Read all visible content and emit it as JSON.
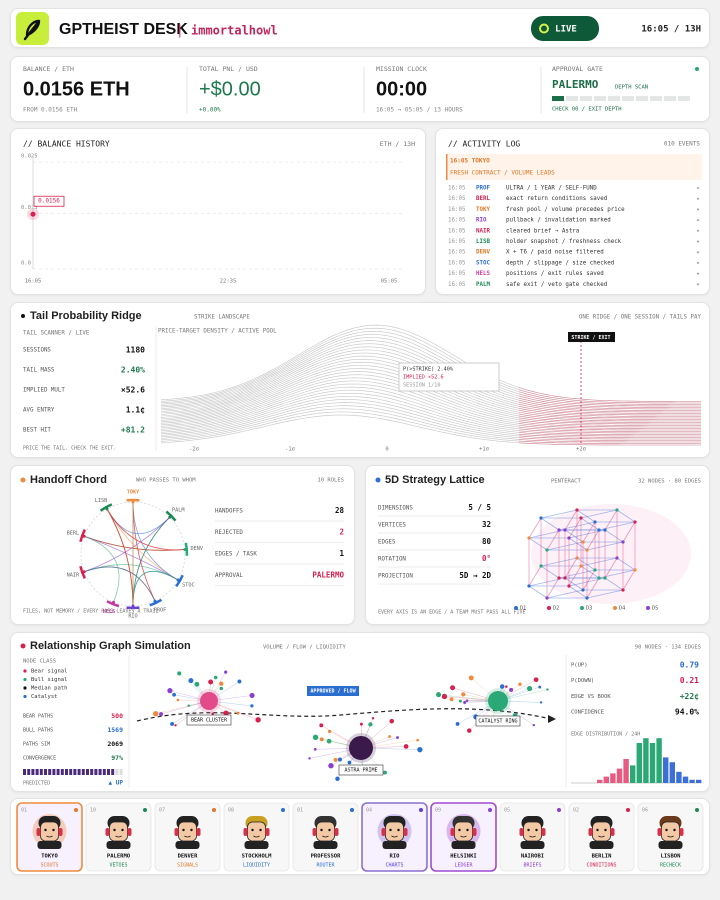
{
  "header": {
    "title": "GPTHEIST DESK",
    "separator": "|",
    "user": "immortalhowl",
    "status": "LIVE",
    "clock": "16:05 / 13H"
  },
  "stats": [
    {
      "label": "BALANCE / ETH",
      "value": "0.0156 ETH",
      "sub": "FROM 0.0156 ETH"
    },
    {
      "label": "TOTAL PNL / USD",
      "value": "+$0.00",
      "sub": "+0.00%"
    },
    {
      "label": "MISSION CLOCK",
      "value": "00:00",
      "sub": "16:05 → 05:05 / 13 HOURS"
    },
    {
      "label": "APPROVAL GATE",
      "value": "PALERMO",
      "tag": "DEPTH SCAN",
      "sub": "CHECK 00 / EXIT DEPTH"
    }
  ],
  "balance_history": {
    "title": "// BALANCE HISTORY",
    "range": "ETH / 13H",
    "ylim": [
      0,
      0.025
    ],
    "yticks": [
      0.025,
      0.013,
      {
        "value": 0,
        "label": "0.0"
      }
    ],
    "x_labels": [
      "16:05",
      "22:35",
      "05:05"
    ],
    "value": 0.0156
  },
  "activity_log": {
    "title": "// ACTIVITY LOG",
    "count": "010 EVENTS",
    "highlight": {
      "time": "16:05 TOKYO",
      "text": "FRESH CONTRACT / VOLUME LEADS"
    },
    "rows": [
      [
        "16:05",
        "PROF",
        "ULTRA / 1 YEAR / SELF-FUND"
      ],
      [
        "16:05",
        "BERL",
        "exact return conditions saved"
      ],
      [
        "16:05",
        "TOKY",
        "fresh pool / volume precedes price"
      ],
      [
        "16:05",
        "RIO",
        "pullback / invalidation marked"
      ],
      [
        "16:05",
        "NAIR",
        "cleared brief → Astra"
      ],
      [
        "16:05",
        "LISB",
        "holder snapshot / freshness check"
      ],
      [
        "16:05",
        "DENV",
        "X + T6 / paid noise filtered"
      ],
      [
        "16:05",
        "STOC",
        "depth / slippage / size checked"
      ],
      [
        "16:05",
        "HELS",
        "positions / exit rules saved"
      ],
      [
        "16:05",
        "PALM",
        "safe exit / veto gate checked"
      ]
    ]
  },
  "tail": {
    "title": "Tail Probability Ridge",
    "tag": "STRIKE LANDSCAPE",
    "right": "ONE RIDGE / ONE SESSION / TAILS PAY",
    "scanner": "TAIL SCANNER / LIVE",
    "stats": [
      [
        "SESSIONS",
        "1180"
      ],
      [
        "TAIL MASS",
        "2.40%"
      ],
      [
        "IMPLIED MULT",
        "×52.6"
      ],
      [
        "AVG ENTRY",
        "1.1¢"
      ],
      [
        "BEST HIT",
        "+81.2"
      ]
    ],
    "footer": "PRICE THE TAIL. CHECK THE EXIT.",
    "chart_label": "PRICE-TARGET DENSITY / ACTIVE POOL",
    "strike": "STRIKE / EXIT",
    "tooltip": [
      "P(>STRIKE) 2.40%",
      "IMPLIED ×52.6",
      "SESSION 1/10"
    ],
    "x_labels": [
      "-2σ",
      "-1σ",
      "0",
      "+1σ",
      "+2σ"
    ]
  },
  "chord": {
    "title": "Handoff Chord",
    "subtitle": "WHO PASSES TO WHOM",
    "roles": "10 ROLES",
    "nodes": [
      "TOKY",
      "PALM",
      "DENV",
      "STOC",
      "PROF",
      "RIO",
      "HELS",
      "NAIR",
      "BERL",
      "LISB"
    ],
    "stats": [
      [
        "HANDOFFS",
        "28"
      ],
      [
        "REJECTED",
        "2"
      ],
      [
        "EDGES / TASK",
        "1"
      ],
      [
        "APPROVAL",
        "PALERMO"
      ]
    ],
    "footer": "FILES, NOT MEMORY / EVERY PASS LEAVES A TRAIL"
  },
  "lattice": {
    "title": "5D Strategy Lattice",
    "tag": "PENTERACT",
    "count": "32 NODES · 80 EDGES",
    "stats": [
      [
        "DIMENSIONS",
        "5 / 5"
      ],
      [
        "VERTICES",
        "32"
      ],
      [
        "EDGES",
        "80"
      ],
      [
        "ROTATION",
        "0°"
      ],
      [
        "PROJECTION",
        "5D → 2D"
      ]
    ],
    "footer": "EVERY AXIS IS AN EDGE / A TEAM MUST PASS ALL FIVE",
    "legend": [
      "D1",
      "D2",
      "D3",
      "D4",
      "D5"
    ]
  },
  "graph": {
    "title": "Relationship Graph Simulation",
    "tag": "VOLUME / FLOW / LIQUIDITY",
    "count": "90 NODES · 134 EDGES",
    "node_class_title": "NODE CLASS",
    "classes": [
      "Bear signal",
      "Bull signal",
      "Median path",
      "Catalyst"
    ],
    "stats": [
      [
        "BEAR PATHS",
        "500"
      ],
      [
        "BULL PATHS",
        "1569"
      ],
      [
        "PATHS SIM",
        "2069"
      ],
      [
        "CONVERGENCE",
        "97%"
      ]
    ],
    "predicted": "PREDICTED",
    "direction": "▲ UP",
    "nodes": [
      "BEAR CLUSTER",
      "ASTRA PRIME",
      "CATALYST RING"
    ],
    "flow": "APPROVED / FLOW",
    "right_stats": [
      [
        "P(UP)",
        "0.79"
      ],
      [
        "P(DOWN)",
        "0.21"
      ],
      [
        "EDGE VS BOOK",
        "+22¢"
      ],
      [
        "CONFIDENCE",
        "94.0%"
      ]
    ],
    "distribution": {
      "title": "EDGE DISTRIBUTION / 24H",
      "values": [
        2,
        4,
        6,
        9,
        15,
        11,
        25,
        28,
        25,
        28,
        16,
        13,
        7,
        4,
        2,
        2
      ],
      "colors": [
        "#e85a80",
        "#e85a80",
        "#e85a80",
        "#e85a80",
        "#e85a80",
        "#2aa876",
        "#2aa876",
        "#2aa876",
        "#2aa876",
        "#2aa876",
        "#3b6fd8",
        "#3b6fd8",
        "#3b6fd8",
        "#3b6fd8",
        "#3b6fd8",
        "#3b6fd8"
      ]
    }
  },
  "agents": [
    {
      "num": "01",
      "name": "TOKYO",
      "role": "SCOUTS"
    },
    {
      "num": "10",
      "name": "PALERMO",
      "role": "VETOES"
    },
    {
      "num": "07",
      "name": "DENVER",
      "role": "SIGNALS"
    },
    {
      "num": "08",
      "name": "STOCKHOLM",
      "role": "LIQUIDITY"
    },
    {
      "num": "01",
      "name": "PROFESSOR",
      "role": "ROUTER"
    },
    {
      "num": "04",
      "name": "RIO",
      "role": "CHARTS"
    },
    {
      "num": "09",
      "name": "HELSINKI",
      "role": "LEDGER"
    },
    {
      "num": "05",
      "name": "NAIROBI",
      "role": "BRIEFS"
    },
    {
      "num": "02",
      "name": "BERLIN",
      "role": "CONDITIONS"
    },
    {
      "num": "06",
      "name": "LISBON",
      "role": "RECHECK"
    }
  ]
}
